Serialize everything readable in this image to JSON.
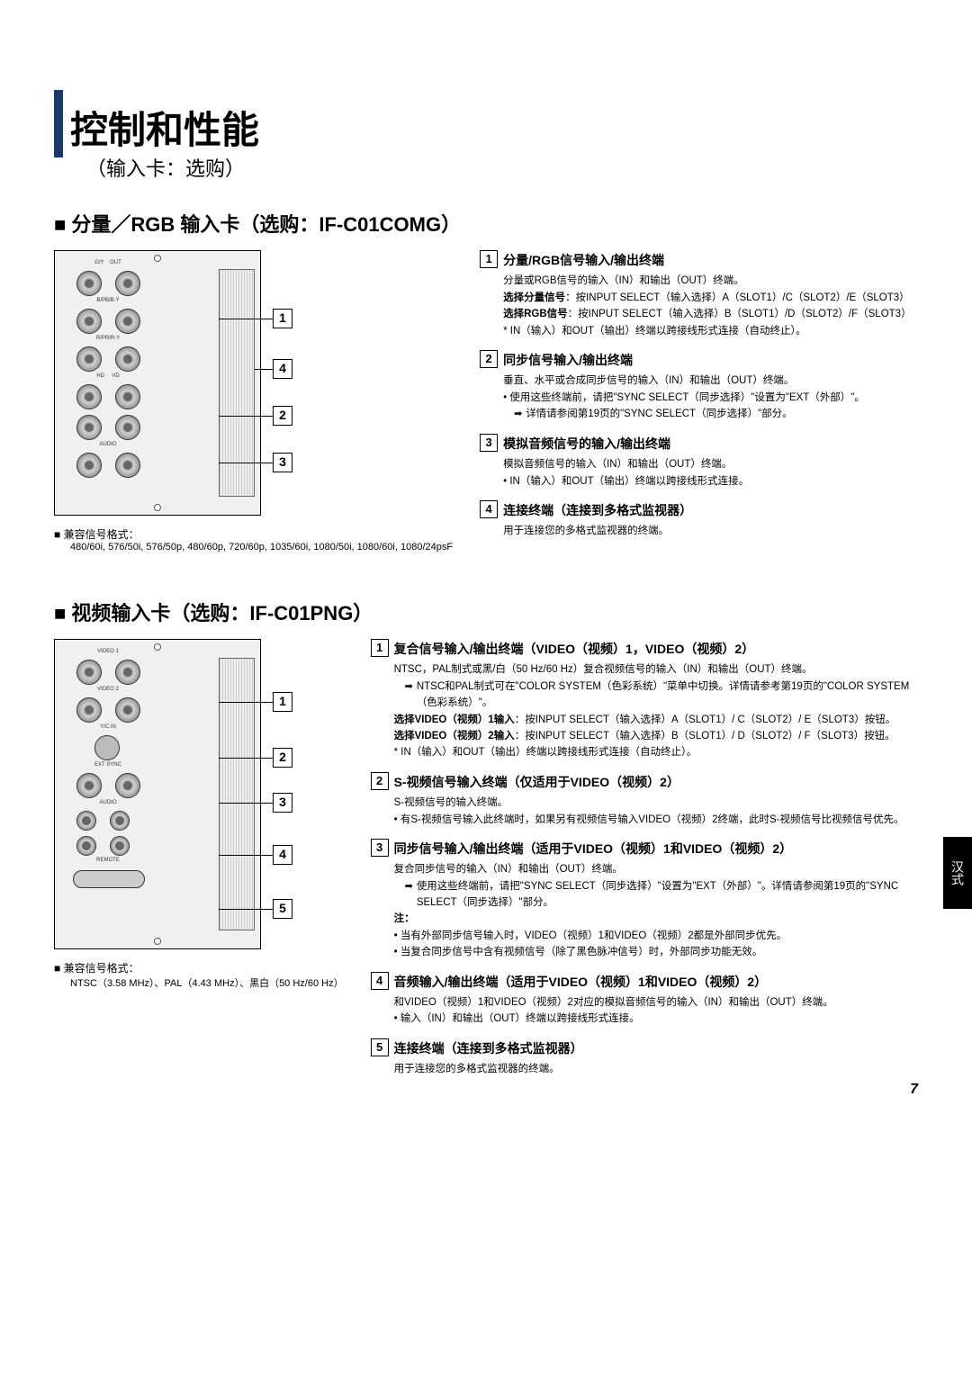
{
  "page": {
    "number": "7",
    "sideTab": "汉式"
  },
  "header": {
    "mainTitle": "控制和性能",
    "subTitle": "（输入卡：选购）"
  },
  "section1": {
    "title": "■ 分量／RGB 输入卡（选购：IF-C01COMG）",
    "compat": {
      "title": "■ 兼容信号格式：",
      "body": "480/60i, 576/50i, 576/50p, 480/60p, 720/60p, 1035/60i, 1080/50i, 1080/60i, 1080/24psF"
    },
    "items": [
      {
        "num": "1",
        "heading": "分量/RGB信号输入/输出终端",
        "lines": [
          "分量或RGB信号的输入（IN）和输出（OUT）终端。",
          "<b>选择分量信号</b>：按INPUT SELECT（输入选择）A（SLOT1）/C（SLOT2）/E（SLOT3）",
          "<b>选择RGB信号</b>：按INPUT SELECT（输入选择）B（SLOT1）/D（SLOT2）/F（SLOT3）",
          "* IN（输入）和OUT（输出）终端以跨接线形式连接（自动终止）。"
        ]
      },
      {
        "num": "2",
        "heading": "同步信号输入/输出终端",
        "lines": [
          "垂直、水平或合成同步信号的输入（IN）和输出（OUT）终端。",
          "• 使用这些终端前，请把\"SYNC SELECT（同步选择）\"设置为\"EXT（外部）\"。"
        ],
        "arrowNote": "详情请参阅第19页的\"SYNC SELECT（同步选择）\"部分。"
      },
      {
        "num": "3",
        "heading": "模拟音频信号的输入/输出终端",
        "lines": [
          "模拟音频信号的输入（IN）和输出（OUT）终端。",
          "• IN（输入）和OUT（输出）终端以跨接线形式连接。"
        ]
      },
      {
        "num": "4",
        "heading": "连接终端（连接到多格式监视器）",
        "lines": [
          "用于连接您的多格式监视器的终端。"
        ]
      }
    ]
  },
  "section2": {
    "title": "■ 视频输入卡（选购：IF-C01PNG）",
    "compat": {
      "title": "■ 兼容信号格式：",
      "body": "NTSC（3.58 MHz）、PAL（4.43 MHz）、黑白（50 Hz/60 Hz）"
    },
    "items": [
      {
        "num": "1",
        "heading": "复合信号输入/输出终端（VIDEO（视频）1，VIDEO（视频）2）",
        "lines": [
          "NTSC，PAL制式或黑/白（50 Hz/60 Hz）复合视频信号的输入（IN）和输出（OUT）终端。"
        ],
        "arrowNote": "NTSC和PAL制式可在\"COLOR SYSTEM（色彩系统）\"菜单中切换。详情请参考第19页的\"COLOR SYSTEM（色彩系统）\"。",
        "extra": [
          "<b>选择VIDEO（视频）1输入</b>：按INPUT SELECT（输入选择）A（SLOT1）/ C（SLOT2）/ E（SLOT3）按钮。",
          "<b>选择VIDEO（视频）2输入</b>：按INPUT SELECT（输入选择）B（SLOT1）/ D（SLOT2）/ F（SLOT3）按钮。",
          "* IN（输入）和OUT（输出）终端以跨接线形式连接（自动终止）。"
        ]
      },
      {
        "num": "2",
        "heading": "S-视频信号输入终端（仅适用于VIDEO（视频）2）",
        "lines": [
          "S-视频信号的输入终端。",
          "• 有S-视频信号输入此终端时，如果另有视频信号输入VIDEO（视频）2终端，此时S-视频信号比视频信号优先。"
        ]
      },
      {
        "num": "3",
        "heading": "同步信号输入/输出终端（适用于VIDEO（视频）1和VIDEO（视频）2）",
        "lines": [
          "复合同步信号的输入（IN）和输出（OUT）终端。"
        ],
        "arrowNote": "使用这些终端前，请把\"SYNC SELECT（同步选择）\"设置为\"EXT（外部）\"。详情请参阅第19页的\"SYNC SELECT（同步选择）\"部分。",
        "extra": [
          "<b>注：</b>",
          "• 当有外部同步信号输入时，VIDEO（视频）1和VIDEO（视频）2都是外部同步优先。",
          "• 当复合同步信号中含有视频信号（除了黑色脉冲信号）时，外部同步功能无效。"
        ]
      },
      {
        "num": "4",
        "heading": "音频输入/输出终端（适用于VIDEO（视频）1和VIDEO（视频）2）",
        "lines": [
          "和VIDEO（视频）1和VIDEO（视频）2对应的模拟音频信号的输入（IN）和输出（OUT）终端。",
          "• 输入（IN）和输出（OUT）终端以跨接线形式连接。"
        ]
      },
      {
        "num": "5",
        "heading": "连接终端（连接到多格式监视器）",
        "lines": [
          "用于连接您的多格式监视器的终端。"
        ]
      }
    ]
  }
}
